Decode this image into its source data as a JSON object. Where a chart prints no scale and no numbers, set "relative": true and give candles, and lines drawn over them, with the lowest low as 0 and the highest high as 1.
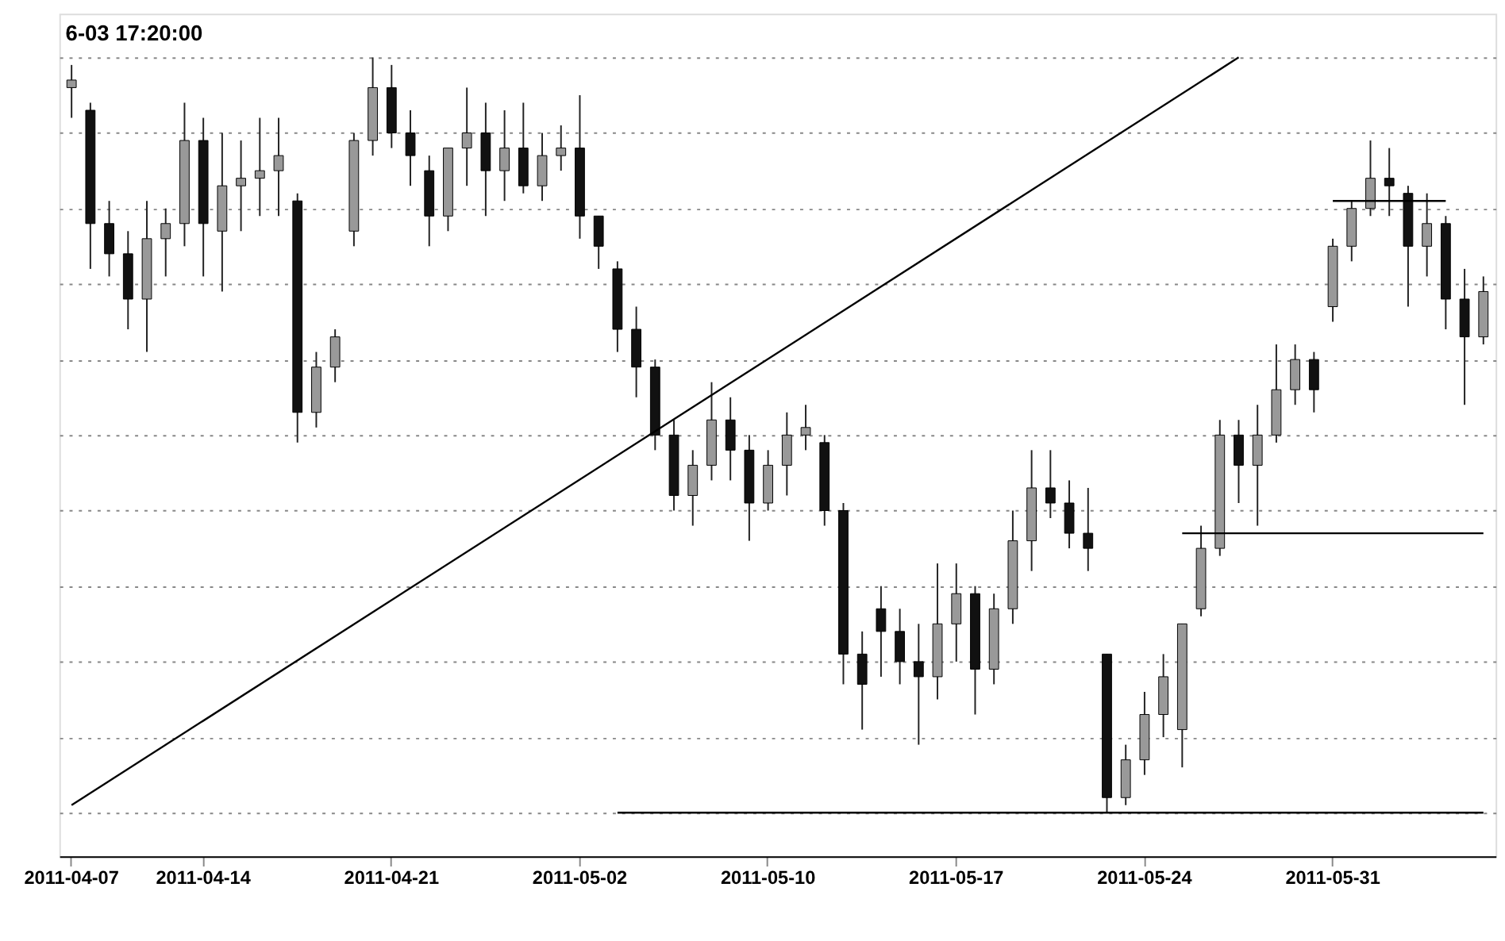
{
  "chart_data": {
    "type": "candlestick",
    "relative": true,
    "categories": [
      "2011-04-07",
      null,
      null,
      null,
      null,
      null,
      null,
      "2011-04-14",
      null,
      null,
      null,
      null,
      null,
      null,
      null,
      null,
      null,
      "2011-04-21",
      null,
      null,
      null,
      null,
      null,
      null,
      null,
      null,
      null,
      "2011-05-02",
      null,
      null,
      null,
      null,
      null,
      null,
      null,
      null,
      null,
      "2011-05-10",
      null,
      null,
      null,
      null,
      null,
      null,
      null,
      null,
      null,
      "2011-05-17",
      null,
      null,
      null,
      null,
      null,
      null,
      null,
      null,
      null,
      "2011-05-24",
      null,
      null,
      null,
      null,
      null,
      null,
      null,
      null,
      null,
      "2011-05-31",
      null,
      null,
      null,
      null,
      null,
      null,
      null,
      null
    ],
    "ohlc": [
      [
        0.96,
        0.99,
        0.92,
        0.97
      ],
      [
        0.93,
        0.94,
        0.72,
        0.78
      ],
      [
        0.78,
        0.81,
        0.71,
        0.74
      ],
      [
        0.74,
        0.77,
        0.64,
        0.68
      ],
      [
        0.68,
        0.81,
        0.61,
        0.76
      ],
      [
        0.76,
        0.8,
        0.71,
        0.78
      ],
      [
        0.78,
        0.94,
        0.75,
        0.89
      ],
      [
        0.89,
        0.92,
        0.71,
        0.78
      ],
      [
        0.77,
        0.9,
        0.69,
        0.83
      ],
      [
        0.83,
        0.89,
        0.77,
        0.84
      ],
      [
        0.84,
        0.92,
        0.79,
        0.85
      ],
      [
        0.85,
        0.92,
        0.79,
        0.87
      ],
      [
        0.81,
        0.82,
        0.49,
        0.53
      ],
      [
        0.53,
        0.61,
        0.51,
        0.59
      ],
      [
        0.59,
        0.64,
        0.57,
        0.63
      ],
      [
        0.77,
        0.9,
        0.75,
        0.89
      ],
      [
        0.89,
        1.0,
        0.87,
        0.96
      ],
      [
        0.96,
        0.99,
        0.88,
        0.9
      ],
      [
        0.9,
        0.93,
        0.83,
        0.87
      ],
      [
        0.85,
        0.87,
        0.75,
        0.79
      ],
      [
        0.79,
        0.88,
        0.77,
        0.88
      ],
      [
        0.88,
        0.96,
        0.83,
        0.9
      ],
      [
        0.9,
        0.94,
        0.79,
        0.85
      ],
      [
        0.85,
        0.93,
        0.81,
        0.88
      ],
      [
        0.88,
        0.94,
        0.82,
        0.83
      ],
      [
        0.83,
        0.9,
        0.81,
        0.87
      ],
      [
        0.87,
        0.91,
        0.85,
        0.88
      ],
      [
        0.88,
        0.95,
        0.76,
        0.79
      ],
      [
        0.79,
        0.79,
        0.72,
        0.75
      ],
      [
        0.72,
        0.73,
        0.61,
        0.64
      ],
      [
        0.64,
        0.67,
        0.55,
        0.59
      ],
      [
        0.59,
        0.6,
        0.48,
        0.5
      ],
      [
        0.5,
        0.52,
        0.4,
        0.42
      ],
      [
        0.42,
        0.48,
        0.38,
        0.46
      ],
      [
        0.46,
        0.57,
        0.44,
        0.52
      ],
      [
        0.52,
        0.55,
        0.44,
        0.48
      ],
      [
        0.48,
        0.5,
        0.36,
        0.41
      ],
      [
        0.41,
        0.48,
        0.4,
        0.46
      ],
      [
        0.46,
        0.53,
        0.42,
        0.5
      ],
      [
        0.5,
        0.54,
        0.48,
        0.51
      ],
      [
        0.49,
        0.5,
        0.38,
        0.4
      ],
      [
        0.4,
        0.41,
        0.17,
        0.21
      ],
      [
        0.21,
        0.24,
        0.11,
        0.17
      ],
      [
        0.27,
        0.3,
        0.18,
        0.24
      ],
      [
        0.24,
        0.27,
        0.17,
        0.2
      ],
      [
        0.2,
        0.25,
        0.09,
        0.18
      ],
      [
        0.18,
        0.33,
        0.15,
        0.25
      ],
      [
        0.25,
        0.33,
        0.2,
        0.29
      ],
      [
        0.29,
        0.3,
        0.13,
        0.19
      ],
      [
        0.19,
        0.29,
        0.17,
        0.27
      ],
      [
        0.27,
        0.4,
        0.25,
        0.36
      ],
      [
        0.36,
        0.48,
        0.32,
        0.43
      ],
      [
        0.43,
        0.48,
        0.39,
        0.41
      ],
      [
        0.41,
        0.44,
        0.35,
        0.37
      ],
      [
        0.37,
        0.43,
        0.32,
        0.35
      ],
      [
        0.21,
        0.21,
        0.0,
        0.02
      ],
      [
        0.02,
        0.09,
        0.01,
        0.07
      ],
      [
        0.07,
        0.16,
        0.05,
        0.13
      ],
      [
        0.13,
        0.21,
        0.1,
        0.18
      ],
      [
        0.11,
        0.25,
        0.06,
        0.25
      ],
      [
        0.27,
        0.38,
        0.26,
        0.35
      ],
      [
        0.35,
        0.52,
        0.34,
        0.5
      ],
      [
        0.5,
        0.52,
        0.41,
        0.46
      ],
      [
        0.46,
        0.54,
        0.38,
        0.5
      ],
      [
        0.5,
        0.62,
        0.49,
        0.56
      ],
      [
        0.56,
        0.62,
        0.54,
        0.6
      ],
      [
        0.6,
        0.61,
        0.53,
        0.56
      ],
      [
        0.67,
        0.76,
        0.65,
        0.75
      ],
      [
        0.75,
        0.81,
        0.73,
        0.8
      ],
      [
        0.8,
        0.89,
        0.79,
        0.84
      ],
      [
        0.84,
        0.88,
        0.79,
        0.83
      ],
      [
        0.82,
        0.83,
        0.67,
        0.75
      ],
      [
        0.75,
        0.82,
        0.71,
        0.78
      ],
      [
        0.78,
        0.79,
        0.64,
        0.68
      ],
      [
        0.68,
        0.72,
        0.54,
        0.63
      ],
      [
        0.63,
        0.71,
        0.62,
        0.69
      ]
    ],
    "series": [
      {
        "type": "line",
        "color": "#000000",
        "values": [
          0.01,
          null,
          null,
          null,
          null,
          null,
          null,
          null,
          null,
          null,
          null,
          null,
          null,
          null,
          null,
          null,
          null,
          null,
          null,
          null,
          null,
          null,
          null,
          null,
          null,
          null,
          null,
          null,
          null,
          null,
          null,
          null,
          null,
          null,
          null,
          null,
          null,
          null,
          null,
          null,
          null,
          null,
          null,
          null,
          null,
          null,
          null,
          null,
          null,
          null,
          null,
          null,
          null,
          null,
          null,
          null,
          null,
          null,
          null,
          null,
          null,
          null,
          1.0,
          null,
          null,
          null,
          null,
          null,
          null,
          null,
          null,
          null,
          null,
          null,
          null,
          null
        ]
      },
      {
        "type": "line",
        "color": "#000000",
        "values": [
          null,
          null,
          null,
          null,
          null,
          null,
          null,
          null,
          null,
          null,
          null,
          null,
          null,
          null,
          null,
          null,
          null,
          null,
          null,
          null,
          null,
          null,
          null,
          null,
          null,
          null,
          null,
          null,
          null,
          0.0,
          null,
          null,
          null,
          null,
          null,
          null,
          null,
          null,
          null,
          null,
          null,
          null,
          null,
          null,
          null,
          null,
          null,
          null,
          null,
          null,
          null,
          null,
          null,
          null,
          null,
          null,
          null,
          null,
          null,
          null,
          null,
          null,
          null,
          null,
          null,
          null,
          null,
          null,
          null,
          null,
          null,
          null,
          null,
          null,
          null,
          0.0
        ]
      },
      {
        "type": "line",
        "color": "#000000",
        "values": [
          null,
          null,
          null,
          null,
          null,
          null,
          null,
          null,
          null,
          null,
          null,
          null,
          null,
          null,
          null,
          null,
          null,
          null,
          null,
          null,
          null,
          null,
          null,
          null,
          null,
          null,
          null,
          null,
          null,
          null,
          null,
          null,
          null,
          null,
          null,
          null,
          null,
          null,
          null,
          null,
          null,
          null,
          null,
          null,
          null,
          null,
          null,
          null,
          null,
          null,
          null,
          null,
          null,
          null,
          null,
          null,
          null,
          null,
          null,
          0.37,
          null,
          null,
          null,
          null,
          null,
          null,
          null,
          null,
          null,
          null,
          null,
          null,
          null,
          null,
          null,
          0.37
        ]
      },
      {
        "type": "line",
        "color": "#000000",
        "values": [
          null,
          null,
          null,
          null,
          null,
          null,
          null,
          null,
          null,
          null,
          null,
          null,
          null,
          null,
          null,
          null,
          null,
          null,
          null,
          null,
          null,
          null,
          null,
          null,
          null,
          null,
          null,
          null,
          null,
          null,
          null,
          null,
          null,
          null,
          null,
          null,
          null,
          null,
          null,
          null,
          null,
          null,
          null,
          null,
          null,
          null,
          null,
          null,
          null,
          null,
          null,
          null,
          null,
          null,
          null,
          null,
          null,
          null,
          null,
          null,
          null,
          null,
          null,
          null,
          null,
          null,
          null,
          0.81,
          null,
          null,
          null,
          null,
          null,
          0.81,
          null,
          null
        ]
      }
    ],
    "annotations": [
      "6-03 17:20:00"
    ],
    "grid": "y"
  }
}
